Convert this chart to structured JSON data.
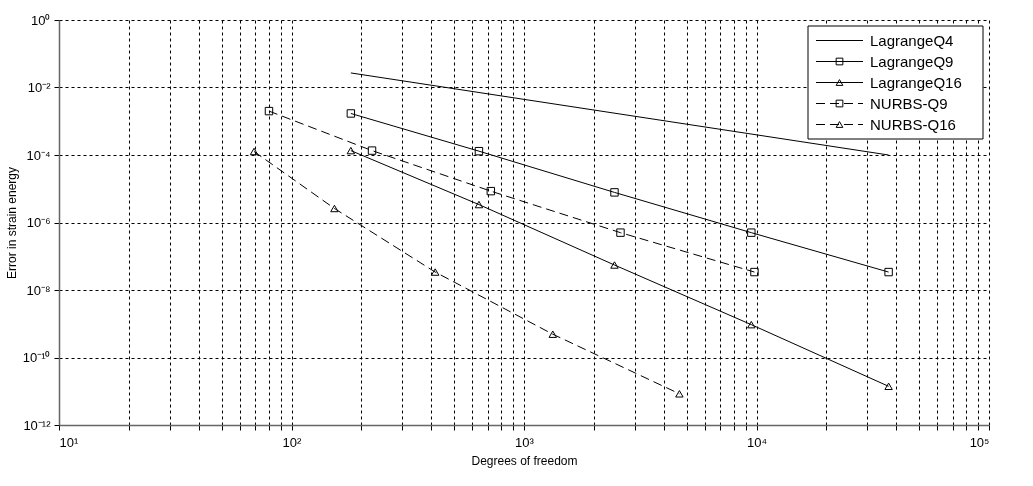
{
  "chart_data": {
    "type": "line",
    "xlabel": "Degrees of freedom",
    "ylabel": "Error in strain energy",
    "log": "xy",
    "grid": true,
    "legend": "top right",
    "xlim": [
      10,
      100000
    ],
    "ylim": [
      1e-12,
      1
    ],
    "xticks": [
      {
        "value": 10,
        "label": "10¹"
      },
      {
        "value": 20,
        "label": null
      },
      {
        "value": 30,
        "label": null
      },
      {
        "value": 40,
        "label": null
      },
      {
        "value": 50,
        "label": null
      },
      {
        "value": 60,
        "label": null
      },
      {
        "value": 70,
        "label": null
      },
      {
        "value": 80,
        "label": null
      },
      {
        "value": 90,
        "label": null
      },
      {
        "value": 100,
        "label": "10²"
      },
      {
        "value": 200,
        "label": null
      },
      {
        "value": 300,
        "label": null
      },
      {
        "value": 400,
        "label": null
      },
      {
        "value": 500,
        "label": null
      },
      {
        "value": 600,
        "label": null
      },
      {
        "value": 700,
        "label": null
      },
      {
        "value": 800,
        "label": null
      },
      {
        "value": 900,
        "label": null
      },
      {
        "value": 1000,
        "label": "10³"
      },
      {
        "value": 2000,
        "label": null
      },
      {
        "value": 3000,
        "label": null
      },
      {
        "value": 4000,
        "label": null
      },
      {
        "value": 5000,
        "label": null
      },
      {
        "value": 6000,
        "label": null
      },
      {
        "value": 7000,
        "label": null
      },
      {
        "value": 8000,
        "label": null
      },
      {
        "value": 9000,
        "label": null
      },
      {
        "value": 10000,
        "label": "10⁴"
      },
      {
        "value": 20000,
        "label": null
      },
      {
        "value": 30000,
        "label": null
      },
      {
        "value": 40000,
        "label": null
      },
      {
        "value": 50000,
        "label": null
      },
      {
        "value": 60000,
        "label": null
      },
      {
        "value": 70000,
        "label": null
      },
      {
        "value": 80000,
        "label": null
      },
      {
        "value": 90000,
        "label": null
      },
      {
        "value": 100000,
        "label": "10⁵"
      }
    ],
    "yticks": [
      {
        "value": 1e-12,
        "label": "10⁻¹²"
      },
      {
        "value": 1e-10,
        "label": "10⁻¹⁰"
      },
      {
        "value": 1e-08,
        "label": "10⁻⁸"
      },
      {
        "value": 1e-06,
        "label": "10⁻⁶"
      },
      {
        "value": 0.0001,
        "label": "10⁻⁴"
      },
      {
        "value": 0.01,
        "label": "10⁻²"
      },
      {
        "value": 1,
        "label": "10⁰"
      }
    ],
    "series": [
      {
        "name": "LagrangeQ4",
        "color": "#000000",
        "marker": "none",
        "line_style": "solid",
        "x": [
          180,
          37000
        ],
        "values": [
          0.027,
          0.0001
        ]
      },
      {
        "name": "LagrangeQ9",
        "color": "#000000",
        "marker": "square",
        "line_style": "solid",
        "x": [
          180,
          640,
          2450,
          9500,
          37000
        ],
        "values": [
          0.0017,
          0.00013,
          7.8e-06,
          5e-07,
          3.4e-08
        ]
      },
      {
        "name": "LagrangeQ16",
        "color": "#000000",
        "marker": "triangle",
        "line_style": "solid",
        "x": [
          180,
          640,
          2450,
          9500,
          37000
        ],
        "values": [
          0.000135,
          3.4e-06,
          5.5e-08,
          9.4e-10,
          1.4e-11
        ]
      },
      {
        "name": "NURBS-Q9",
        "color": "#000000",
        "marker": "square",
        "line_style": "dashed",
        "x": [
          80,
          222,
          720,
          2600,
          9800
        ],
        "values": [
          0.002,
          0.000135,
          8.5e-06,
          5e-07,
          3.4e-08
        ]
      },
      {
        "name": "NURBS-Q16",
        "color": "#000000",
        "marker": "triangle",
        "line_style": "dashed",
        "x": [
          69,
          153,
          415,
          1330,
          4660
        ],
        "values": [
          0.000127,
          2.6e-06,
          3.4e-08,
          4.9e-10,
          8.4e-12
        ]
      }
    ]
  }
}
